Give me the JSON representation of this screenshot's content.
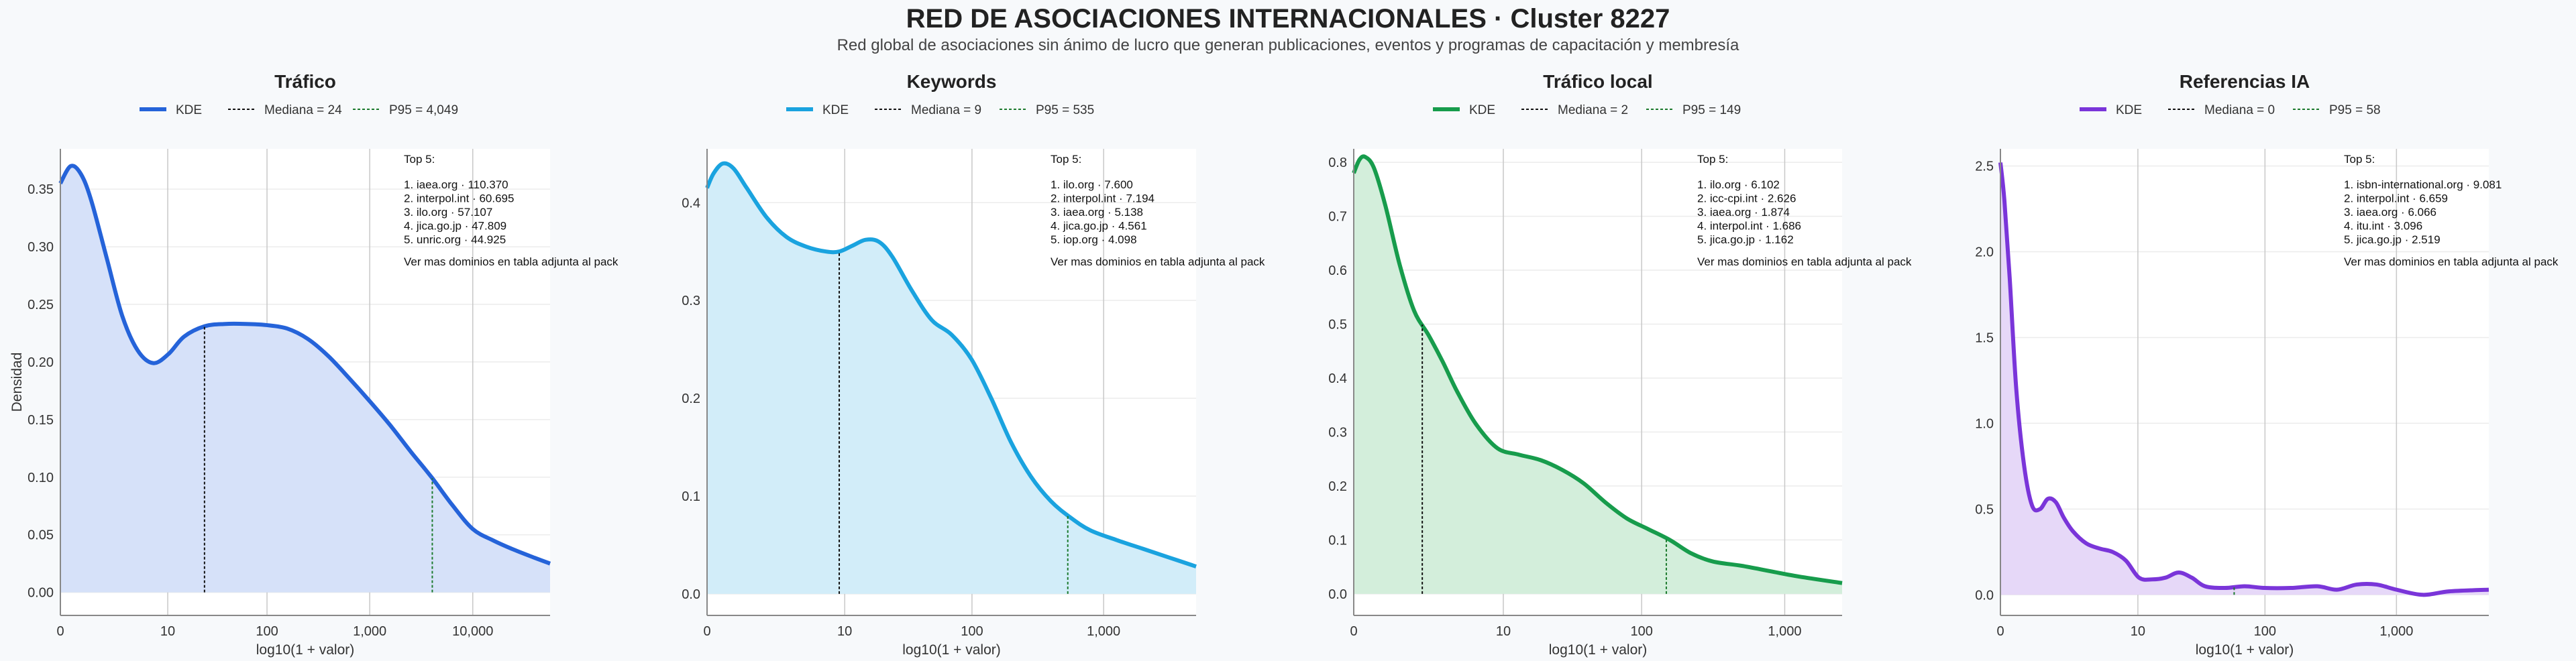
{
  "title": "RED DE ASOCIACIONES INTERNACIONALES · Cluster 8227",
  "subtitle": "Red global de asociaciones sin ánimo de lucro que generan publicaciones, eventos y programas de capacitación y membresía",
  "chart_data": [
    {
      "type": "area",
      "title": "Tráfico",
      "xlabel": "log10(1 + valor)",
      "ylabel": "Densidad",
      "x_scale": "log10(1+x)",
      "xlim": [
        0,
        4.75
      ],
      "ylim": [
        -0.02,
        0.385
      ],
      "x_ticks": [
        0,
        10,
        100,
        1000,
        10000
      ],
      "x_tick_labels": [
        "0",
        "10",
        "100",
        "1,000",
        "10,000"
      ],
      "y_ticks": [
        0,
        0.05,
        0.1,
        0.15,
        0.2,
        0.25,
        0.3,
        0.35
      ],
      "y_tick_labels": [
        "0.00",
        "0.05",
        "0.10",
        "0.15",
        "0.20",
        "0.25",
        "0.30",
        "0.35"
      ],
      "grid": true,
      "legend_placement": "top-center",
      "color": "#2563d9",
      "fill_color": "#d6e1f9",
      "legend": {
        "kde": "KDE",
        "median": "Mediana = 24",
        "p95": "P95 = 4,049"
      },
      "median": 24,
      "p95": 4049,
      "kde_x": [
        0,
        0.1,
        0.2,
        0.3,
        0.45,
        0.6,
        0.75,
        0.9,
        1.05,
        1.2,
        1.4,
        1.6,
        1.8,
        2.0,
        2.2,
        2.4,
        2.6,
        2.8,
        3.0,
        3.2,
        3.4,
        3.6,
        3.8,
        4.0,
        4.2,
        4.4,
        4.6,
        4.75
      ],
      "kde_y": [
        0.355,
        0.37,
        0.363,
        0.34,
        0.29,
        0.24,
        0.21,
        0.199,
        0.207,
        0.222,
        0.231,
        0.233,
        0.233,
        0.232,
        0.229,
        0.22,
        0.205,
        0.186,
        0.166,
        0.145,
        0.122,
        0.1,
        0.076,
        0.055,
        0.045,
        0.037,
        0.03,
        0.025
      ],
      "top5": {
        "heading": "Top 5:",
        "items": [
          "1. iaea.org · 110.370",
          "2. interpol.int · 60.695",
          "3. ilo.org · 57.107",
          "4. jica.go.jp · 47.809",
          "5. unric.org · 44.925"
        ],
        "note": "Ver mas dominios en tabla adjunta al pack"
      }
    },
    {
      "type": "area",
      "title": "Keywords",
      "xlabel": "log10(1 + valor)",
      "ylabel": "",
      "x_scale": "log10(1+x)",
      "xlim": [
        0,
        3.7
      ],
      "ylim": [
        -0.022,
        0.455
      ],
      "x_ticks": [
        0,
        10,
        100,
        1000
      ],
      "x_tick_labels": [
        "0",
        "10",
        "100",
        "1,000"
      ],
      "y_ticks": [
        0,
        0.1,
        0.2,
        0.3,
        0.4
      ],
      "y_tick_labels": [
        "0.0",
        "0.1",
        "0.2",
        "0.3",
        "0.4"
      ],
      "grid": true,
      "legend_placement": "top-center",
      "color": "#1aa3df",
      "fill_color": "#d2edf9",
      "legend": {
        "kde": "KDE",
        "median": "Mediana = 9",
        "p95": "P95 = 535"
      },
      "median": 9,
      "p95": 535,
      "kde_x": [
        0,
        0.05,
        0.12,
        0.2,
        0.3,
        0.45,
        0.6,
        0.75,
        0.9,
        1.0,
        1.1,
        1.2,
        1.3,
        1.4,
        1.55,
        1.7,
        1.85,
        2.0,
        2.15,
        2.3,
        2.45,
        2.6,
        2.75,
        2.9,
        3.1,
        3.3,
        3.5,
        3.7
      ],
      "kde_y": [
        0.415,
        0.43,
        0.44,
        0.435,
        0.415,
        0.385,
        0.365,
        0.355,
        0.35,
        0.35,
        0.356,
        0.362,
        0.36,
        0.345,
        0.31,
        0.28,
        0.265,
        0.24,
        0.2,
        0.155,
        0.12,
        0.095,
        0.078,
        0.065,
        0.055,
        0.046,
        0.037,
        0.028
      ],
      "top5": {
        "heading": "Top 5:",
        "items": [
          "1. ilo.org · 7.600",
          "2. interpol.int · 7.194",
          "3. iaea.org · 5.138",
          "4. jica.go.jp · 4.561",
          "5. iop.org · 4.098"
        ],
        "note": "Ver mas dominios en tabla adjunta al pack"
      }
    },
    {
      "type": "area",
      "title": "Tráfico local",
      "xlabel": "log10(1 + valor)",
      "ylabel": "",
      "x_scale": "log10(1+x)",
      "xlim": [
        0,
        3.4
      ],
      "ylim": [
        -0.04,
        0.825
      ],
      "x_ticks": [
        0,
        10,
        100,
        1000
      ],
      "x_tick_labels": [
        "0",
        "10",
        "100",
        "1,000"
      ],
      "y_ticks": [
        0,
        0.1,
        0.2,
        0.3,
        0.4,
        0.5,
        0.6,
        0.7,
        0.8
      ],
      "y_tick_labels": [
        "0.0",
        "0.1",
        "0.2",
        "0.3",
        "0.4",
        "0.5",
        "0.6",
        "0.7",
        "0.8"
      ],
      "grid": true,
      "legend_placement": "top-center",
      "color": "#179c4c",
      "fill_color": "#d3eedb",
      "legend": {
        "kde": "KDE",
        "median": "Mediana = 2",
        "p95": "P95 = 149"
      },
      "median": 2,
      "p95": 149,
      "kde_x": [
        0,
        0.04,
        0.08,
        0.14,
        0.22,
        0.32,
        0.42,
        0.52,
        0.62,
        0.72,
        0.85,
        1.0,
        1.15,
        1.3,
        1.45,
        1.6,
        1.75,
        1.9,
        2.05,
        2.2,
        2.35,
        2.5,
        2.7,
        2.9,
        3.1,
        3.4
      ],
      "kde_y": [
        0.78,
        0.805,
        0.81,
        0.79,
        0.72,
        0.61,
        0.525,
        0.48,
        0.43,
        0.375,
        0.315,
        0.27,
        0.258,
        0.248,
        0.23,
        0.205,
        0.17,
        0.14,
        0.12,
        0.1,
        0.075,
        0.06,
        0.052,
        0.042,
        0.032,
        0.02
      ],
      "top5": {
        "heading": "Top 5:",
        "items": [
          "1. ilo.org · 6.102",
          "2. icc-cpi.int · 2.626",
          "3. iaea.org · 1.874",
          "4. interpol.int · 1.686",
          "5. jica.go.jp · 1.162"
        ],
        "note": "Ver mas dominios en tabla adjunta al pack"
      }
    },
    {
      "type": "area",
      "title": "Referencias IA",
      "xlabel": "log10(1 + valor)",
      "ylabel": "",
      "x_scale": "log10(1+x)",
      "xlim": [
        0,
        3.7
      ],
      "ylim": [
        -0.12,
        2.6
      ],
      "x_ticks": [
        0,
        10,
        100,
        1000
      ],
      "x_tick_labels": [
        "0",
        "10",
        "100",
        "1,000"
      ],
      "y_ticks": [
        0,
        0.5,
        1.0,
        1.5,
        2.0,
        2.5
      ],
      "y_tick_labels": [
        "0.0",
        "0.5",
        "1.0",
        "1.5",
        "2.0",
        "2.5"
      ],
      "grid": true,
      "legend_placement": "top-center",
      "color": "#7a35d9",
      "fill_color": "#e6d8f8",
      "legend": {
        "kde": "KDE",
        "median": "Mediana = 0",
        "p95": "P95 = 58"
      },
      "median": 0,
      "p95": 58,
      "kde_x": [
        0,
        0.03,
        0.07,
        0.12,
        0.18,
        0.24,
        0.3,
        0.36,
        0.42,
        0.48,
        0.55,
        0.65,
        0.75,
        0.85,
        0.95,
        1.05,
        1.15,
        1.25,
        1.35,
        1.45,
        1.55,
        1.7,
        1.85,
        2.0,
        2.2,
        2.4,
        2.55,
        2.7,
        2.85,
        3.0,
        3.2,
        3.4,
        3.7
      ],
      "kde_y": [
        2.52,
        2.3,
        1.85,
        1.2,
        0.75,
        0.52,
        0.5,
        0.56,
        0.54,
        0.45,
        0.37,
        0.3,
        0.27,
        0.25,
        0.2,
        0.1,
        0.09,
        0.1,
        0.13,
        0.1,
        0.05,
        0.04,
        0.05,
        0.04,
        0.04,
        0.05,
        0.03,
        0.06,
        0.06,
        0.03,
        0.0,
        0.02,
        0.03
      ],
      "top5": {
        "heading": "Top 5:",
        "items": [
          "1. isbn-international.org · 9.081",
          "2. interpol.int · 6.659",
          "3. iaea.org · 6.066",
          "4. itu.int · 3.096",
          "5. jica.go.jp · 2.519"
        ],
        "note": "Ver mas dominios en tabla adjunta al pack"
      }
    }
  ]
}
